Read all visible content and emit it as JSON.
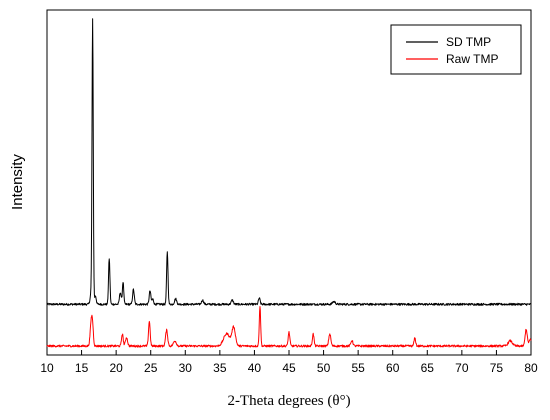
{
  "chart_data": {
    "type": "line",
    "title": "",
    "xlabel": "2-Theta degrees (θ°)",
    "ylabel": "Intensity",
    "xlim": [
      10,
      80
    ],
    "x_ticks": [
      10,
      15,
      20,
      25,
      30,
      35,
      40,
      45,
      50,
      55,
      60,
      65,
      70,
      75,
      80
    ],
    "y_ticks_shown": false,
    "ylim": [
      0,
      100
    ],
    "grid": false,
    "legend_position": "top-right",
    "series": [
      {
        "name": "SD TMP",
        "color": "#000000",
        "baseline": 14.7,
        "peaks": [
          [
            16.4,
            3.3,
            0.15
          ],
          [
            16.6,
            81.3,
            0.09
          ],
          [
            17.0,
            2.5,
            0.12
          ],
          [
            19.0,
            13.3,
            0.1
          ],
          [
            20.6,
            3.5,
            0.12
          ],
          [
            21.0,
            6.5,
            0.1
          ],
          [
            22.5,
            4.3,
            0.12
          ],
          [
            24.9,
            3.9,
            0.12
          ],
          [
            25.3,
            1.5,
            0.12
          ],
          [
            27.4,
            15.3,
            0.1
          ],
          [
            28.6,
            1.6,
            0.15
          ],
          [
            32.5,
            1.2,
            0.15
          ],
          [
            36.8,
            1.2,
            0.15
          ],
          [
            40.7,
            1.8,
            0.12
          ],
          [
            51.5,
            0.8,
            0.2
          ]
        ]
      },
      {
        "name": "Raw TMP",
        "color": "#ff0000",
        "baseline": 2.6,
        "peaks": [
          [
            16.4,
            7.0,
            0.15
          ],
          [
            16.6,
            4.5,
            0.12
          ],
          [
            20.9,
            3.5,
            0.12
          ],
          [
            21.5,
            2.5,
            0.15
          ],
          [
            24.8,
            7.2,
            0.12
          ],
          [
            27.3,
            4.6,
            0.15
          ],
          [
            28.5,
            1.5,
            0.2
          ],
          [
            36.0,
            3.6,
            0.45
          ],
          [
            37.0,
            5.3,
            0.25
          ],
          [
            40.8,
            11.6,
            0.1
          ],
          [
            45.0,
            4.0,
            0.12
          ],
          [
            48.5,
            3.5,
            0.12
          ],
          [
            50.9,
            3.5,
            0.15
          ],
          [
            54.1,
            1.6,
            0.15
          ],
          [
            63.2,
            2.3,
            0.12
          ],
          [
            77.0,
            1.5,
            0.3
          ],
          [
            79.3,
            4.9,
            0.15
          ],
          [
            79.9,
            1.8,
            0.2
          ]
        ]
      }
    ]
  }
}
